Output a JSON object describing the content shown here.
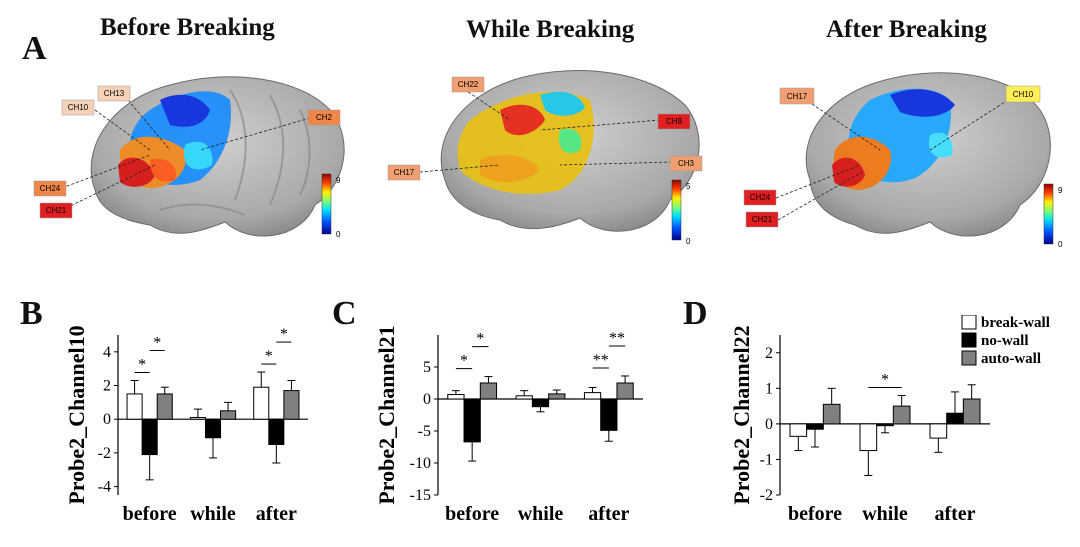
{
  "panels": {
    "A": "A",
    "B": "B",
    "C": "C",
    "D": "D"
  },
  "brain_maps": [
    {
      "title": "Before Breaking",
      "labels": [
        "CH13",
        "CH10",
        "CH2",
        "CH24",
        "CH21"
      ],
      "colorbar": {
        "max": "9",
        "min": "0"
      }
    },
    {
      "title": "While Breaking",
      "labels": [
        "CH22",
        "CH9",
        "CH3",
        "CH17"
      ],
      "colorbar": {
        "max": "5",
        "min": "0"
      }
    },
    {
      "title": "After Breaking",
      "labels": [
        "CH17",
        "CH10",
        "CH24",
        "CH21"
      ],
      "colorbar": {
        "max": "9",
        "min": "0"
      }
    }
  ],
  "legend": [
    {
      "label": "break-wall",
      "color": "#ffffff"
    },
    {
      "label": "no-wall",
      "color": "#000000"
    },
    {
      "label": "auto-wall",
      "color": "#808080"
    }
  ],
  "chart_data": [
    {
      "type": "bar",
      "panel": "B",
      "ylabel": "Probe2_Channel10",
      "categories": [
        "before",
        "while",
        "after"
      ],
      "ylim": [
        -4.5,
        5
      ],
      "yticks": [
        "-4",
        "-2",
        "0",
        "2",
        "4"
      ],
      "series": [
        {
          "name": "break-wall",
          "values": [
            1.5,
            0.1,
            1.9
          ],
          "errors": [
            0.8,
            0.5,
            0.9
          ]
        },
        {
          "name": "no-wall",
          "values": [
            -2.1,
            -1.1,
            -1.5
          ],
          "errors": [
            1.5,
            1.2,
            1.1
          ]
        },
        {
          "name": "auto-wall",
          "values": [
            1.5,
            0.5,
            1.7
          ],
          "errors": [
            0.4,
            0.5,
            0.6
          ]
        }
      ],
      "significance": [
        {
          "group": "before",
          "from": 0,
          "to": 1,
          "label": "*"
        },
        {
          "group": "before",
          "from": 1,
          "to": 2,
          "label": "*"
        },
        {
          "group": "after",
          "from": 0,
          "to": 1,
          "label": "*"
        },
        {
          "group": "after",
          "from": 1,
          "to": 2,
          "label": "*"
        }
      ]
    },
    {
      "type": "bar",
      "panel": "C",
      "ylabel": "Probe2_Channel21",
      "categories": [
        "before",
        "while",
        "after"
      ],
      "ylim": [
        -15,
        10
      ],
      "yticks": [
        "-15",
        "-10",
        "-5",
        "0",
        "5"
      ],
      "series": [
        {
          "name": "break-wall",
          "values": [
            0.7,
            0.5,
            1.0
          ],
          "errors": [
            0.6,
            0.8,
            0.8
          ]
        },
        {
          "name": "no-wall",
          "values": [
            -6.7,
            -1.2,
            -4.9
          ],
          "errors": [
            3.0,
            0.8,
            1.7
          ]
        },
        {
          "name": "auto-wall",
          "values": [
            2.5,
            0.8,
            2.5
          ],
          "errors": [
            1.0,
            0.6,
            1.1
          ]
        }
      ],
      "significance": [
        {
          "group": "before",
          "from": 0,
          "to": 1,
          "label": "*"
        },
        {
          "group": "before",
          "from": 1,
          "to": 2,
          "label": "*"
        },
        {
          "group": "after",
          "from": 0,
          "to": 1,
          "label": "**"
        },
        {
          "group": "after",
          "from": 1,
          "to": 2,
          "label": "**"
        }
      ]
    },
    {
      "type": "bar",
      "panel": "D",
      "ylabel": "Probe2_Channel22",
      "categories": [
        "before",
        "while",
        "after"
      ],
      "ylim": [
        -2,
        2.5
      ],
      "yticks": [
        "-2",
        "-1",
        "0",
        "1",
        "2"
      ],
      "series": [
        {
          "name": "break-wall",
          "values": [
            -0.35,
            -0.75,
            -0.4
          ],
          "errors": [
            0.4,
            0.7,
            0.4
          ]
        },
        {
          "name": "no-wall",
          "values": [
            -0.15,
            -0.05,
            0.3
          ],
          "errors": [
            0.5,
            0.2,
            0.6
          ]
        },
        {
          "name": "auto-wall",
          "values": [
            0.55,
            0.5,
            0.7
          ],
          "errors": [
            0.45,
            0.3,
            0.4
          ]
        }
      ],
      "significance": [
        {
          "group": "while",
          "from": 0,
          "to": 2,
          "label": "*"
        }
      ]
    }
  ]
}
